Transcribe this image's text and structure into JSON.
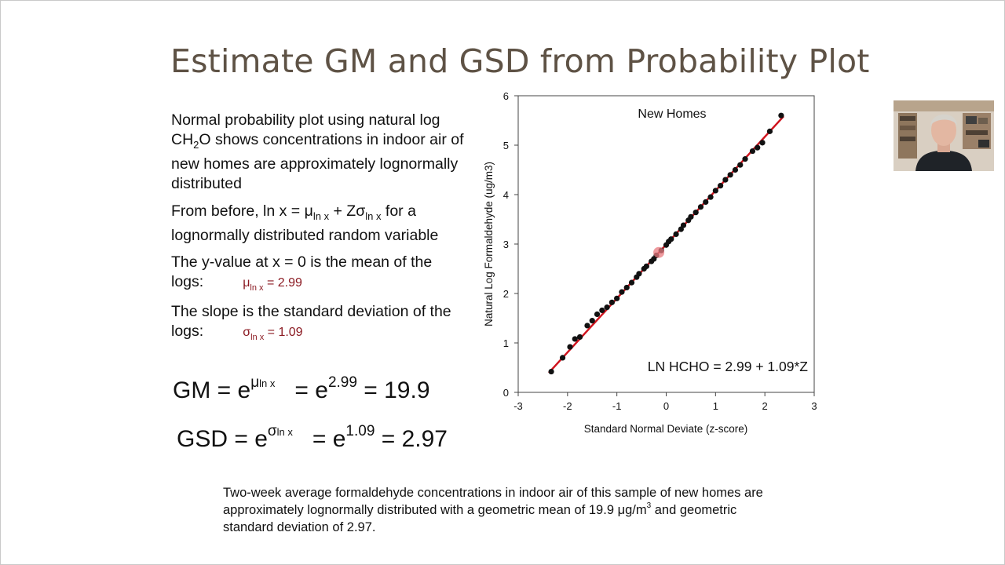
{
  "slide": {
    "title": "Estimate GM and GSD from Probability Plot",
    "p1_pre": "Normal probability plot using natural log CH",
    "p1_sub": "2",
    "p1_post": "O shows concentrations in indoor air of new homes are approximately lognormally distributed",
    "p2_a": "From before, ln x = μ",
    "p2_sub1": "ln x",
    "p2_b": " + Zσ",
    "p2_sub2": "ln x",
    "p2_c": " for a lognormally distributed random variable",
    "p3_text": "The y-value at x = 0 is the mean of the logs:",
    "p3_val_sym": "μ",
    "p3_val_sub": "ln x",
    "p3_val_rest": " = 2.99",
    "p4_text": "The slope is the standard deviation of the logs:",
    "p4_val_sym": "σ",
    "p4_val_sub": "ln x",
    "p4_val_rest": " = 1.09",
    "gm_left": "GM = e",
    "gm_sup_sym": "μ",
    "gm_sup_sub": "ln x",
    "gm_mid": "= e",
    "gm_mid_sup": "2.99",
    "gm_result": " = 19.9",
    "gsd_left": "GSD = e",
    "gsd_sup_sym": "σ",
    "gsd_sup_sub": "ln x",
    "gsd_mid": "= e",
    "gsd_mid_sup": "1.09",
    "gsd_result": " = 2.97",
    "conclusion_a": "Two-week average formaldehyde concentrations in indoor air of this sample of new homes are approximately lognormally distributed with a geometric mean of 19.9 μg/m",
    "conclusion_sup": "3",
    "conclusion_b": " and geometric standard deviation of 2.97."
  },
  "chart_data": {
    "type": "scatter",
    "title": "New Homes",
    "xlabel": "Standard Normal Deviate (z-score)",
    "ylabel": "Natural Log Formaldehyde (ug/m3)",
    "xlim": [
      -3,
      3
    ],
    "ylim": [
      0,
      6
    ],
    "xticks": [
      "-3",
      "-2",
      "-1",
      "0",
      "1",
      "2",
      "3"
    ],
    "yticks": [
      "0",
      "1",
      "2",
      "3",
      "4",
      "5",
      "6"
    ],
    "annotation": "LN HCHO = 2.99 + 1.09*Z",
    "fit_line": {
      "intercept": 2.99,
      "slope": 1.09,
      "color": "#d0141e"
    },
    "point_color": "#111111",
    "highlight_point": {
      "x": -0.15,
      "y": 2.83,
      "color": "#e8797f"
    },
    "points": [
      [
        -2.33,
        0.42
      ],
      [
        -2.1,
        0.7
      ],
      [
        -1.95,
        0.92
      ],
      [
        -1.85,
        1.08
      ],
      [
        -1.75,
        1.12
      ],
      [
        -1.6,
        1.35
      ],
      [
        -1.5,
        1.45
      ],
      [
        -1.4,
        1.58
      ],
      [
        -1.3,
        1.66
      ],
      [
        -1.2,
        1.72
      ],
      [
        -1.1,
        1.82
      ],
      [
        -1.0,
        1.9
      ],
      [
        -0.9,
        2.03
      ],
      [
        -0.8,
        2.12
      ],
      [
        -0.7,
        2.22
      ],
      [
        -0.6,
        2.33
      ],
      [
        -0.55,
        2.4
      ],
      [
        -0.45,
        2.5
      ],
      [
        -0.4,
        2.55
      ],
      [
        -0.3,
        2.65
      ],
      [
        -0.25,
        2.7
      ],
      [
        -0.2,
        2.77
      ],
      [
        -0.1,
        2.87
      ],
      [
        0.0,
        2.98
      ],
      [
        0.05,
        3.05
      ],
      [
        0.1,
        3.1
      ],
      [
        0.2,
        3.2
      ],
      [
        0.3,
        3.3
      ],
      [
        0.35,
        3.38
      ],
      [
        0.45,
        3.48
      ],
      [
        0.5,
        3.55
      ],
      [
        0.6,
        3.64
      ],
      [
        0.7,
        3.75
      ],
      [
        0.8,
        3.85
      ],
      [
        0.9,
        3.95
      ],
      [
        1.0,
        4.08
      ],
      [
        1.1,
        4.18
      ],
      [
        1.2,
        4.3
      ],
      [
        1.3,
        4.4
      ],
      [
        1.4,
        4.5
      ],
      [
        1.5,
        4.6
      ],
      [
        1.6,
        4.72
      ],
      [
        1.75,
        4.88
      ],
      [
        1.85,
        4.95
      ],
      [
        1.95,
        5.05
      ],
      [
        2.1,
        5.28
      ],
      [
        2.33,
        5.6
      ]
    ]
  }
}
